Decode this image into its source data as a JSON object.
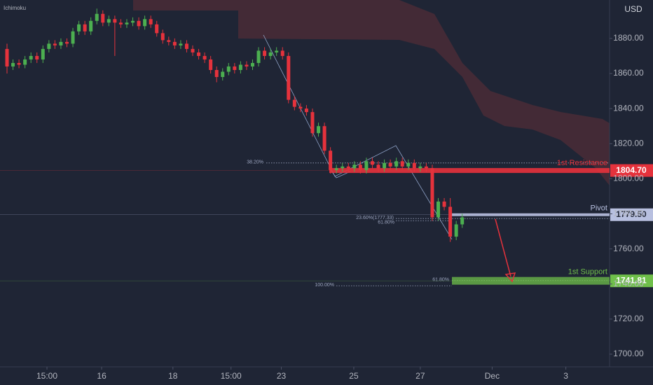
{
  "chart_data": {
    "type": "candlestick",
    "indicator": "Ichimoku",
    "currency": "USD",
    "up_color": "#4caf50",
    "down_color": "#e5323c",
    "xlim": [
      -1.17,
      100.6
    ],
    "ylim": [
      1693.6,
      1901.9
    ],
    "xticks": [
      {
        "value": 6.67,
        "label": "15:00"
      },
      {
        "value": 15.8,
        "label": "16"
      },
      {
        "value": 27.7,
        "label": "18"
      },
      {
        "value": 37.4,
        "label": "15:00"
      },
      {
        "value": 45.8,
        "label": "23"
      },
      {
        "value": 57.9,
        "label": "25"
      },
      {
        "value": 69,
        "label": "27"
      },
      {
        "value": 81,
        "label": "Dec"
      },
      {
        "value": 93.3,
        "label": "3"
      }
    ],
    "yticks": [
      {
        "value": 1700,
        "label": "1700.00"
      },
      {
        "value": 1720,
        "label": "1720.00"
      },
      {
        "value": 1740,
        "label": "1740.00"
      },
      {
        "value": 1760,
        "label": "1760.00"
      },
      {
        "value": 1780,
        "label": "1780.00"
      },
      {
        "value": 1800,
        "label": "1800.00"
      },
      {
        "value": 1820,
        "label": "1820.00"
      },
      {
        "value": 1840,
        "label": "1840.00"
      },
      {
        "value": 1860,
        "label": "1860.00"
      },
      {
        "value": 1880,
        "label": "1880.00"
      }
    ],
    "x": [
      0,
      1,
      2,
      3,
      4,
      5,
      6,
      7,
      8,
      9,
      10,
      11,
      12,
      13,
      14,
      15,
      16,
      17,
      18,
      19,
      20,
      21,
      22,
      23,
      24,
      25,
      26,
      27,
      28,
      29,
      30,
      31,
      32,
      33,
      34,
      35,
      36,
      37,
      38,
      39,
      40,
      41,
      42,
      43,
      44,
      45,
      46,
      47,
      48,
      49,
      50,
      51,
      52,
      53,
      54,
      55,
      56,
      57,
      58,
      59,
      60,
      61,
      62,
      63,
      64,
      65,
      66,
      67,
      68,
      69,
      70,
      71,
      72,
      73,
      74,
      75,
      76
    ],
    "open": [
      1874,
      1864,
      1866,
      1865,
      1868,
      1870,
      1868,
      1874,
      1877,
      1876,
      1878,
      1877,
      1884,
      1888,
      1884,
      1890,
      1894,
      1889,
      1891,
      1889,
      1888,
      1889,
      1890,
      1887,
      1891,
      1888,
      1883,
      1879,
      1878,
      1876,
      1877,
      1874,
      1872,
      1870,
      1868,
      1862,
      1858,
      1861,
      1864,
      1862,
      1865,
      1864,
      1866,
      1873,
      1870,
      1872,
      1873,
      1870,
      1845,
      1841,
      1840,
      1838,
      1826,
      1830,
      1816,
      1805,
      1806,
      1807,
      1806,
      1808,
      1805,
      1810,
      1808,
      1806,
      1809,
      1807,
      1810,
      1807,
      1809,
      1806,
      1807,
      1806,
      1778,
      1787,
      1784,
      1767,
      1774
    ],
    "high": [
      1877,
      1868,
      1868,
      1870,
      1872,
      1872,
      1876,
      1879,
      1879,
      1880,
      1880,
      1886,
      1890,
      1890,
      1892,
      1897,
      1896,
      1893,
      1893,
      1891,
      1891,
      1892,
      1892,
      1893,
      1893,
      1890,
      1885,
      1881,
      1880,
      1879,
      1879,
      1876,
      1874,
      1872,
      1870,
      1864,
      1863,
      1866,
      1866,
      1867,
      1867,
      1868,
      1875,
      1875,
      1874,
      1875,
      1875,
      1872,
      1847,
      1843,
      1842,
      1840,
      1832,
      1832,
      1818,
      1808,
      1809,
      1809,
      1810,
      1810,
      1812,
      1812,
      1810,
      1811,
      1811,
      1812,
      1812,
      1811,
      1811,
      1809,
      1809,
      1808,
      1789,
      1789,
      1789,
      1776,
      1780
    ],
    "low": [
      1860,
      1862,
      1863,
      1863,
      1866,
      1866,
      1866,
      1872,
      1874,
      1874,
      1875,
      1875,
      1882,
      1882,
      1882,
      1888,
      1887,
      1887,
      1870,
      1886,
      1886,
      1887,
      1885,
      1885,
      1886,
      1881,
      1877,
      1876,
      1874,
      1874,
      1872,
      1870,
      1868,
      1866,
      1860,
      1855,
      1856,
      1859,
      1860,
      1860,
      1862,
      1862,
      1864,
      1868,
      1868,
      1870,
      1868,
      1843,
      1839,
      1838,
      1836,
      1824,
      1824,
      1814,
      1803,
      1803,
      1804,
      1804,
      1804,
      1803,
      1803,
      1806,
      1804,
      1804,
      1805,
      1805,
      1805,
      1805,
      1804,
      1804,
      1804,
      1776,
      1776,
      1782,
      1764,
      1765,
      1772
    ],
    "close": [
      1864,
      1866,
      1865,
      1868,
      1870,
      1868,
      1874,
      1877,
      1876,
      1878,
      1877,
      1884,
      1888,
      1884,
      1890,
      1894,
      1889,
      1891,
      1889,
      1888,
      1889,
      1890,
      1887,
      1891,
      1888,
      1883,
      1879,
      1878,
      1876,
      1877,
      1874,
      1872,
      1870,
      1868,
      1862,
      1858,
      1861,
      1864,
      1862,
      1865,
      1864,
      1866,
      1873,
      1870,
      1872,
      1873,
      1870,
      1845,
      1841,
      1840,
      1838,
      1826,
      1830,
      1816,
      1805,
      1806,
      1807,
      1806,
      1808,
      1805,
      1810,
      1808,
      1806,
      1809,
      1807,
      1810,
      1807,
      1809,
      1806,
      1807,
      1806,
      1778,
      1787,
      1784,
      1767,
      1774,
      1778
    ],
    "levels": [
      {
        "name": "1st Resistance",
        "value": 1804.7,
        "value_label": "1804.70",
        "color": "#e5323c"
      },
      {
        "name": "Pivot",
        "value": 1779.5,
        "value_label": "1779.50",
        "color": "#b8c0e0"
      },
      {
        "name": "1st Support",
        "value": 1741.81,
        "value_label": "1741.81",
        "color": "#6fbf4a"
      }
    ],
    "fib_levels": [
      {
        "label": "38.20%",
        "value": 1809
      },
      {
        "label": "23.60%(1777.33)",
        "value": 1777.33
      },
      {
        "label": "61.80%",
        "value": 1776
      },
      {
        "label": "61.80%",
        "value": 1742
      },
      {
        "label": "100.00%",
        "value": 1739
      }
    ]
  }
}
